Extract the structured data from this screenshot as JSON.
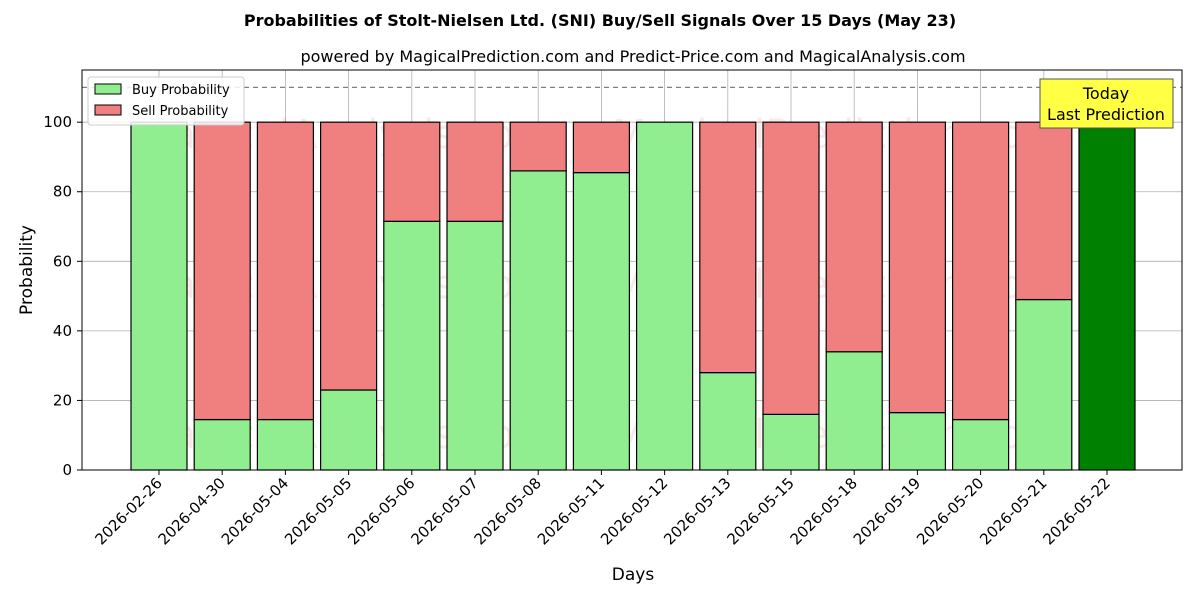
{
  "chart_data": {
    "type": "bar",
    "stacked": true,
    "title": "Probabilities of Stolt-Nielsen Ltd. (SNI) Buy/Sell Signals Over 15 Days (May 23)",
    "subtitle": "powered by MagicalPrediction.com and Predict-Price.com and MagicalAnalysis.com",
    "xlabel": "Days",
    "ylabel": "Probability",
    "ylim": [
      0,
      115
    ],
    "yticks": [
      0,
      20,
      40,
      60,
      80,
      100
    ],
    "categories": [
      "2026-02-26",
      "2026-04-30",
      "2026-05-04",
      "2026-05-05",
      "2026-05-06",
      "2026-05-07",
      "2026-05-08",
      "2026-05-11",
      "2026-05-12",
      "2026-05-13",
      "2026-05-15",
      "2026-05-18",
      "2026-05-19",
      "2026-05-20",
      "2026-05-21",
      "2026-05-22"
    ],
    "series": [
      {
        "name": "Buy Probability",
        "color": "#90ee90",
        "values": [
          100,
          14.5,
          14.5,
          23,
          71.5,
          71.5,
          86,
          85.5,
          100,
          28,
          16,
          34,
          16.5,
          14.5,
          49,
          100
        ]
      },
      {
        "name": "Sell Probability",
        "color": "#f08080",
        "values": [
          0,
          85.5,
          85.5,
          77,
          28.5,
          28.5,
          14,
          14.5,
          0,
          72,
          84,
          66,
          83.5,
          85.5,
          51,
          0
        ]
      }
    ],
    "highlight": {
      "index": 15,
      "color": "#008000"
    },
    "reference_line": {
      "y": 110,
      "style": "dashed",
      "color": "#808080"
    },
    "grid": true,
    "legend_position": "top-left",
    "annotation": {
      "lines": [
        "Today",
        "Last Prediction"
      ],
      "background": "#ffff44"
    },
    "watermarks": [
      "MagicalAnalysis.com",
      "MagicalPrediction.com"
    ]
  }
}
